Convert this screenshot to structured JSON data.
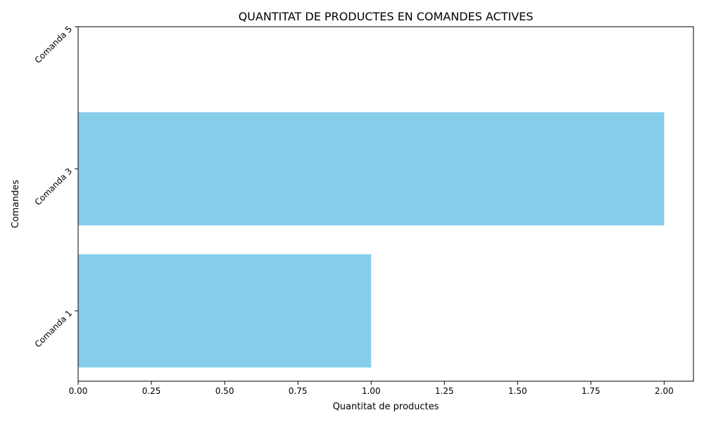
{
  "chart_data": {
    "type": "bar",
    "orientation": "horizontal",
    "title": "QUANTITAT DE PRODUCTES EN COMANDES ACTIVES",
    "xlabel": "Quantitat de productes",
    "ylabel": "Comandes",
    "categories": [
      "Comanda 1",
      "Comanda 3",
      "Comanda 5"
    ],
    "values": [
      1,
      2,
      0
    ],
    "xlim": [
      0,
      2.1
    ],
    "xticks": [
      "0.00",
      "0.25",
      "0.50",
      "0.75",
      "1.00",
      "1.25",
      "1.50",
      "1.75",
      "2.00"
    ],
    "bar_color": "#87ceeb",
    "grid": false,
    "legend": "none"
  }
}
